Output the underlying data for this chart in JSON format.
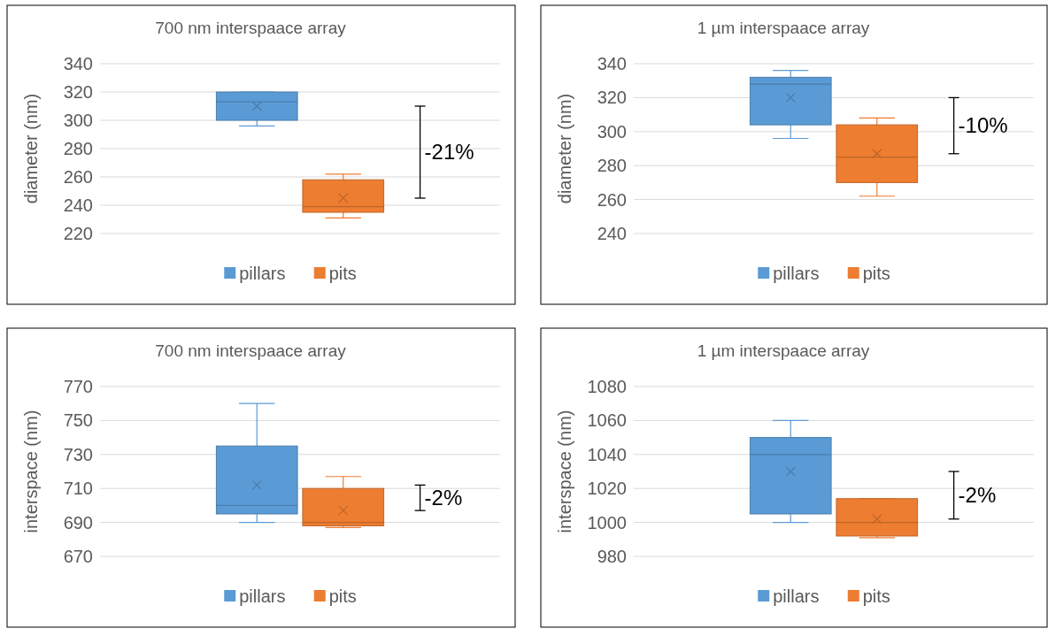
{
  "chart_data": [
    {
      "type": "box",
      "title": "700 nm interspaace array",
      "ylabel": "diameter (nm)",
      "categories": [
        null
      ],
      "ylim": [
        220,
        340
      ],
      "yticks": [
        220,
        240,
        260,
        280,
        300,
        320,
        340
      ],
      "grid": "y",
      "legend": "bottom",
      "tick_labels": "y",
      "annotations": [
        "-21%"
      ],
      "series": [
        {
          "name": "pillars",
          "color": "#5b9bd5",
          "boxes": [
            {
              "low": 296,
              "q1": 300,
              "median": 313,
              "q3": 320,
              "high": 320,
              "mean": 310
            }
          ]
        },
        {
          "name": "pits",
          "color": "#ed7d31",
          "boxes": [
            {
              "low": 231,
              "q1": 235,
              "median": 239,
              "q3": 258,
              "high": 262,
              "mean": 245
            }
          ]
        }
      ]
    },
    {
      "type": "box",
      "title": "1 µm interspaace array",
      "ylabel": "diameter (nm)",
      "categories": [
        null
      ],
      "ylim": [
        240,
        340
      ],
      "yticks": [
        240,
        260,
        280,
        300,
        320,
        340
      ],
      "grid": "y",
      "legend": "bottom",
      "tick_labels": "y",
      "annotations": [
        "-10%"
      ],
      "series": [
        {
          "name": "pillars",
          "color": "#5b9bd5",
          "boxes": [
            {
              "low": 296,
              "q1": 304,
              "median": 328,
              "q3": 332,
              "high": 336,
              "mean": 320
            }
          ]
        },
        {
          "name": "pits",
          "color": "#ed7d31",
          "boxes": [
            {
              "low": 262,
              "q1": 270,
              "median": 285,
              "q3": 304,
              "high": 308,
              "mean": 287
            }
          ]
        }
      ]
    },
    {
      "type": "box",
      "title": "700 nm interspaace array",
      "ylabel": "interspace (nm)",
      "categories": [
        null
      ],
      "ylim": [
        670,
        770
      ],
      "yticks": [
        670,
        690,
        710,
        730,
        750,
        770
      ],
      "grid": "y",
      "legend": "bottom",
      "tick_labels": "y",
      "annotations": [
        "-2%"
      ],
      "series": [
        {
          "name": "pillars",
          "color": "#5b9bd5",
          "boxes": [
            {
              "low": 690,
              "q1": 695,
              "median": 700,
              "q3": 735,
              "high": 760,
              "mean": 712
            }
          ]
        },
        {
          "name": "pits",
          "color": "#ed7d31",
          "boxes": [
            {
              "low": 687,
              "q1": 688,
              "median": 690,
              "q3": 710,
              "high": 717,
              "mean": 697
            }
          ]
        }
      ]
    },
    {
      "type": "box",
      "title": "1 µm interspaace array",
      "ylabel": "interspace (nm)",
      "categories": [
        null
      ],
      "ylim": [
        980,
        1080
      ],
      "yticks": [
        980,
        1000,
        1020,
        1040,
        1060,
        1080
      ],
      "grid": "y",
      "legend": "bottom",
      "tick_labels": "y",
      "annotations": [
        "-2%"
      ],
      "series": [
        {
          "name": "pillars",
          "color": "#5b9bd5",
          "boxes": [
            {
              "low": 1000,
              "q1": 1005,
              "median": 1040,
              "q3": 1050,
              "high": 1060,
              "mean": 1030
            }
          ]
        },
        {
          "name": "pits",
          "color": "#ed7d31",
          "boxes": [
            {
              "low": 991,
              "q1": 992,
              "median": 1000,
              "q3": 1014,
              "high": 1014,
              "mean": 1002
            }
          ]
        }
      ]
    }
  ]
}
